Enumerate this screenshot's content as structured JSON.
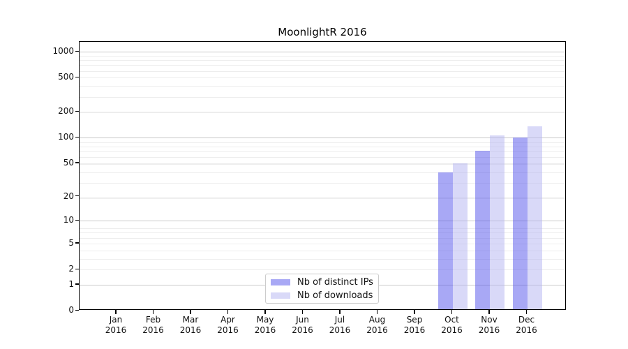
{
  "chart_data": {
    "type": "bar",
    "title": "MoonlightR 2016",
    "categories": [
      "Jan",
      "Feb",
      "Mar",
      "Apr",
      "May",
      "Jun",
      "Jul",
      "Aug",
      "Sep",
      "Oct",
      "Nov",
      "Dec"
    ],
    "category_year": "2016",
    "series": [
      {
        "name": "Nb of distinct IPs",
        "color": "rgba(82,82,236,0.5)",
        "values": [
          0,
          0,
          0,
          0,
          0,
          0,
          0,
          0,
          0,
          39,
          70,
          100
        ]
      },
      {
        "name": "Nb of downloads",
        "color": "rgba(179,179,241,0.5)",
        "values": [
          0,
          0,
          0,
          0,
          0,
          0,
          0,
          0,
          0,
          50,
          106,
          135
        ]
      }
    ],
    "yscale": "log1p",
    "yticks": [
      0,
      1,
      2,
      5,
      10,
      20,
      50,
      100,
      200,
      500,
      1000
    ],
    "major_grid_values": [
      1,
      10,
      100,
      1000
    ],
    "ylim": [
      0,
      1290
    ],
    "grid": true,
    "legend_position": "lower-center",
    "colors": {
      "major_grid": "#c9c9c9",
      "minor_grid": "#ededed",
      "axis": "#000000"
    }
  }
}
